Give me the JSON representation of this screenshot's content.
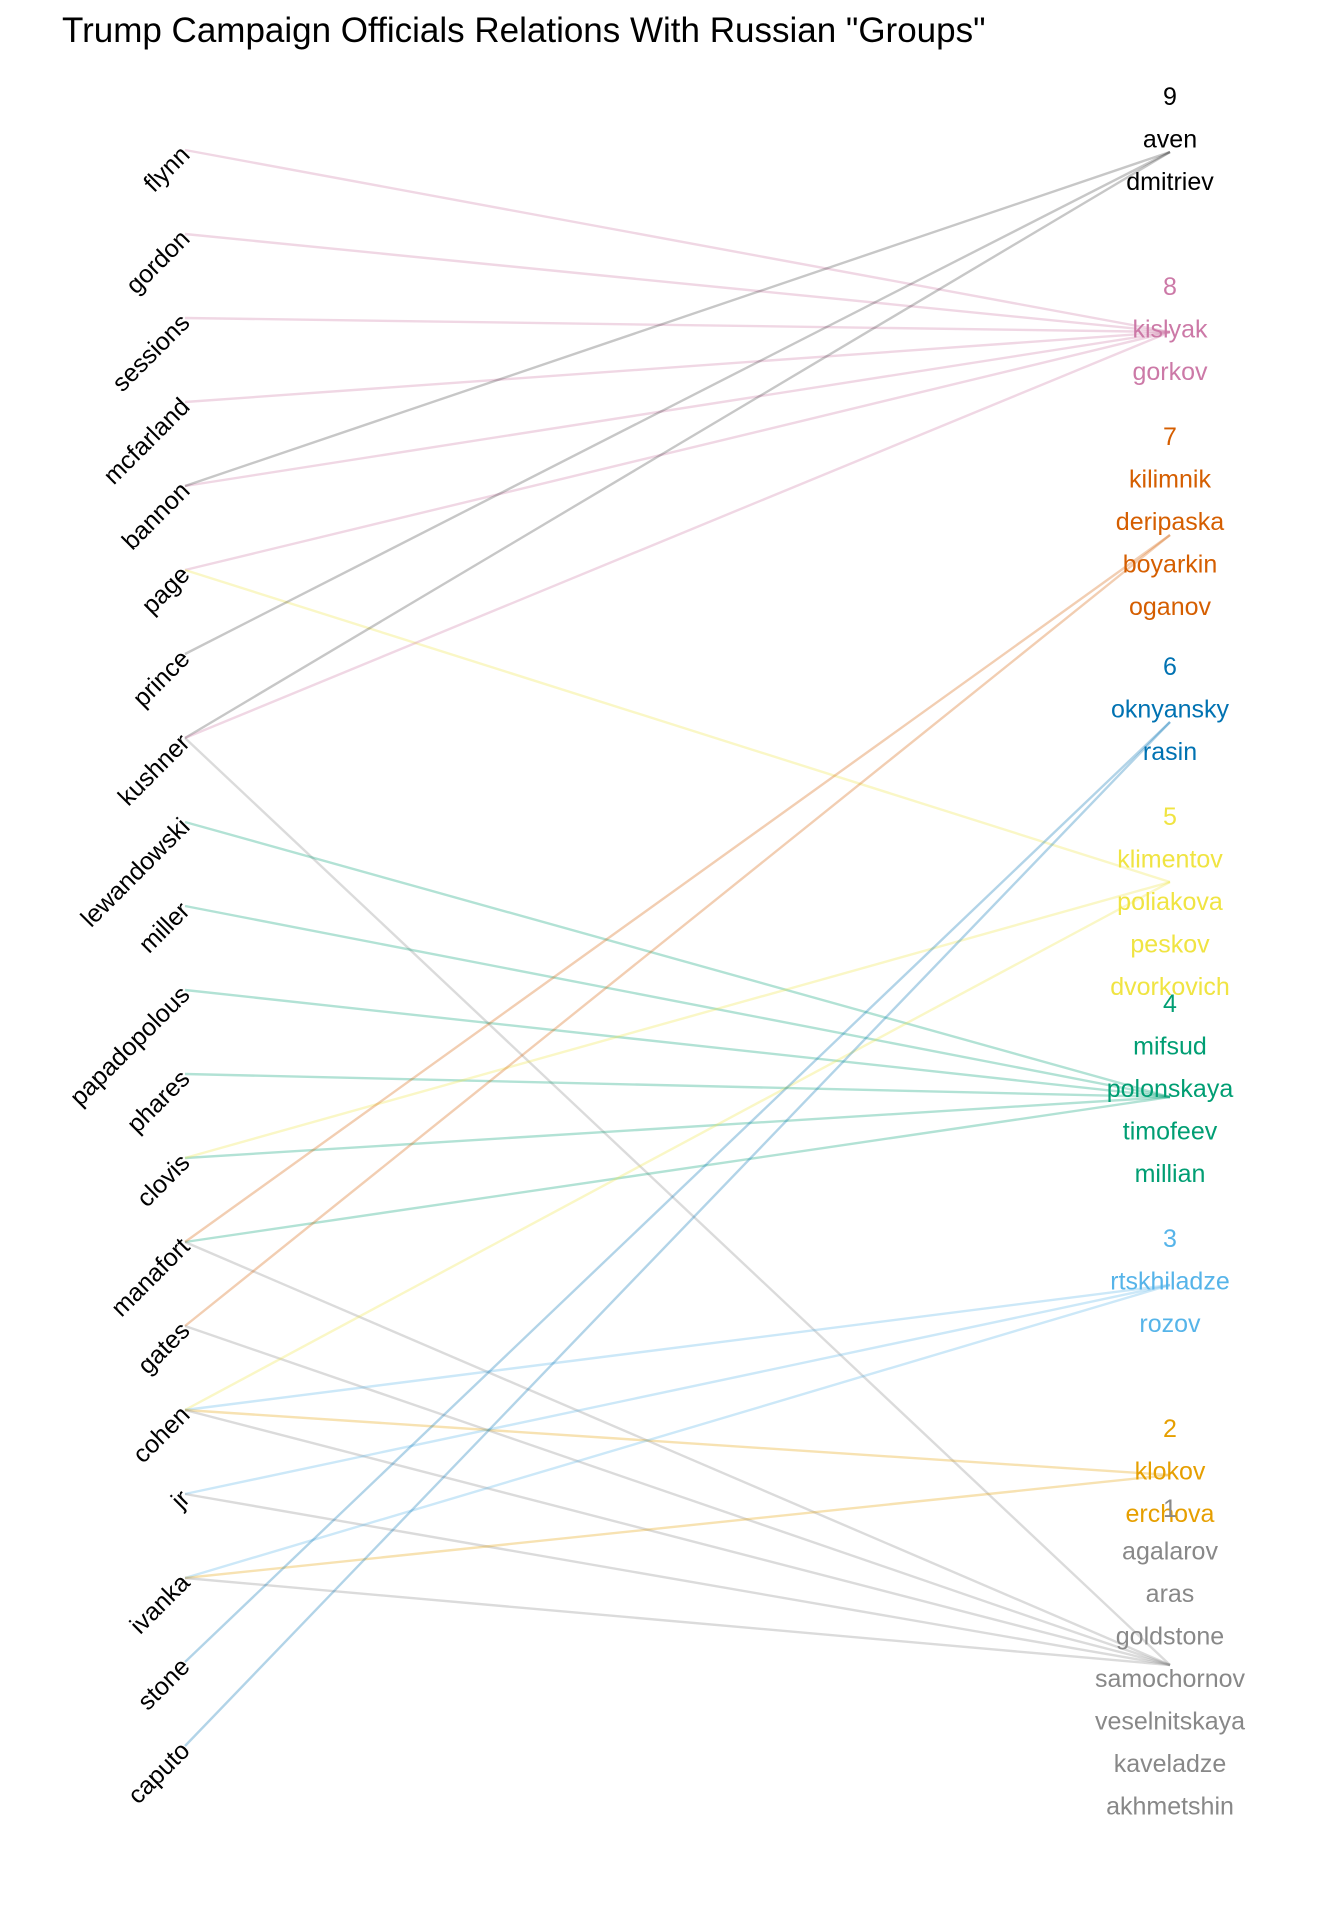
{
  "title": "Trump Campaign Officials Relations With Russian \"Groups\"",
  "group_colors": {
    "1": "#888888",
    "2": "#e69f00",
    "3": "#56b4e9",
    "4": "#009e73",
    "5": "#f0e442",
    "6": "#0072b2",
    "7": "#d55e00",
    "8": "#cc79a7",
    "9": "#000000"
  },
  "officials": [
    "flynn",
    "gordon",
    "sessions",
    "mcfarland",
    "bannon",
    "page",
    "prince",
    "kushner",
    "lewandowski",
    "miller",
    "papadopolous",
    "phares",
    "clovis",
    "manafort",
    "gates",
    "cohen",
    "jr",
    "ivanka",
    "stone",
    "caputo"
  ],
  "groups": [
    {
      "id": "9",
      "members": [
        "aven",
        "dmitriev"
      ]
    },
    {
      "id": "8",
      "members": [
        "kislyak",
        "gorkov"
      ]
    },
    {
      "id": "7",
      "members": [
        "kilimnik",
        "deripaska",
        "boyarkin",
        "oganov"
      ]
    },
    {
      "id": "6",
      "members": [
        "oknyansky",
        "rasin"
      ]
    },
    {
      "id": "5",
      "members": [
        "klimentov",
        "poliakova",
        "peskov",
        "dvorkovich"
      ]
    },
    {
      "id": "4",
      "members": [
        "mifsud",
        "polonskaya",
        "timofeev",
        "millian"
      ]
    },
    {
      "id": "3",
      "members": [
        "rtskhiladze",
        "rozov"
      ]
    },
    {
      "id": "2",
      "members": [
        "klokov",
        "erchova"
      ]
    },
    {
      "id": "1",
      "members": [
        "agalarov",
        "aras",
        "goldstone",
        "samochornov",
        "veselnitskaya",
        "kaveladze",
        "akhmetshin"
      ]
    }
  ],
  "chart_data": {
    "type": "bipartite-network",
    "title": "Trump Campaign Officials Relations With Russian \"Groups\"",
    "links": [
      {
        "official": "flynn",
        "group": "8"
      },
      {
        "official": "gordon",
        "group": "8"
      },
      {
        "official": "sessions",
        "group": "8"
      },
      {
        "official": "mcfarland",
        "group": "8"
      },
      {
        "official": "bannon",
        "group": "8"
      },
      {
        "official": "bannon",
        "group": "9"
      },
      {
        "official": "page",
        "group": "8"
      },
      {
        "official": "page",
        "group": "5"
      },
      {
        "official": "prince",
        "group": "9"
      },
      {
        "official": "kushner",
        "group": "9"
      },
      {
        "official": "kushner",
        "group": "8"
      },
      {
        "official": "kushner",
        "group": "1"
      },
      {
        "official": "lewandowski",
        "group": "4"
      },
      {
        "official": "miller",
        "group": "4"
      },
      {
        "official": "papadopolous",
        "group": "4"
      },
      {
        "official": "phares",
        "group": "4"
      },
      {
        "official": "clovis",
        "group": "4"
      },
      {
        "official": "clovis",
        "group": "5"
      },
      {
        "official": "manafort",
        "group": "4"
      },
      {
        "official": "manafort",
        "group": "7"
      },
      {
        "official": "manafort",
        "group": "1"
      },
      {
        "official": "gates",
        "group": "7"
      },
      {
        "official": "gates",
        "group": "1"
      },
      {
        "official": "cohen",
        "group": "5"
      },
      {
        "official": "cohen",
        "group": "3"
      },
      {
        "official": "cohen",
        "group": "2"
      },
      {
        "official": "cohen",
        "group": "1"
      },
      {
        "official": "jr",
        "group": "3"
      },
      {
        "official": "jr",
        "group": "1"
      },
      {
        "official": "ivanka",
        "group": "3"
      },
      {
        "official": "ivanka",
        "group": "2"
      },
      {
        "official": "ivanka",
        "group": "1"
      },
      {
        "official": "stone",
        "group": "6"
      },
      {
        "official": "caputo",
        "group": "6"
      }
    ]
  }
}
